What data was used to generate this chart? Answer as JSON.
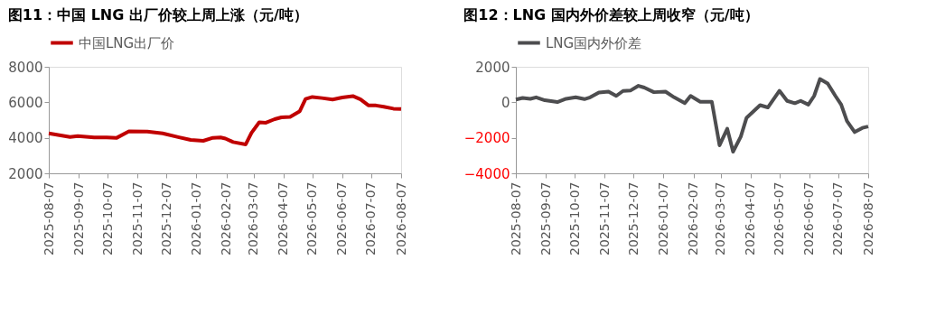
{
  "chart_data": [
    {
      "type": "line",
      "title": "图11：中国 LNG 出厂价较上周上涨（元/吨）",
      "x": [
        "2025-08-07",
        "2025-08-29",
        "2025-09-06",
        "2025-09-23",
        "2025-10-06",
        "2025-10-16",
        "2025-10-29",
        "2025-11-17",
        "2025-12-03",
        "2025-12-19",
        "2026-01-01",
        "2026-01-14",
        "2026-01-24",
        "2026-02-01",
        "2026-02-06",
        "2026-02-14",
        "2026-02-27",
        "2026-03-05",
        "2026-03-13",
        "2026-03-20",
        "2026-03-29",
        "2026-04-05",
        "2026-04-14",
        "2026-04-24",
        "2026-04-30",
        "2026-05-07",
        "2026-05-17",
        "2026-05-28",
        "2026-06-07",
        "2026-06-18",
        "2026-06-26",
        "2026-07-04",
        "2026-07-12",
        "2026-07-20",
        "2026-07-30",
        "2026-08-07"
      ],
      "series": [
        {
          "name": "中国LNG出厂价",
          "color": "#c00000",
          "values": [
            4250,
            4050,
            4100,
            4020,
            4020,
            3990,
            4360,
            4350,
            4250,
            4040,
            3880,
            3830,
            4000,
            4020,
            3960,
            3760,
            3630,
            4280,
            4870,
            4850,
            5050,
            5150,
            5180,
            5500,
            6190,
            6300,
            6240,
            6160,
            6270,
            6350,
            6160,
            5830,
            5820,
            5750,
            5640,
            5620
          ]
        }
      ],
      "xlim": [
        "2025-08-07",
        "2026-08-07"
      ],
      "xticks": [
        "2025-08-07",
        "2025-09-07",
        "2025-10-07",
        "2025-11-07",
        "2025-12-07",
        "2026-01-07",
        "2026-02-07",
        "2026-03-07",
        "2026-04-07",
        "2026-05-07",
        "2026-06-07",
        "2026-07-07",
        "2026-08-07"
      ],
      "ylim": [
        2000,
        8000
      ],
      "yticks": [
        2000,
        4000,
        6000,
        8000
      ],
      "grid": false,
      "legend": "top",
      "marker": "none",
      "line_style": "solid"
    },
    {
      "type": "line",
      "title": "图12：LNG 国内外价差较上周收窄（元/吨）",
      "x": [
        "2025-08-07",
        "2025-08-14",
        "2025-08-22",
        "2025-08-28",
        "2025-09-06",
        "2025-09-19",
        "2025-09-28",
        "2025-10-08",
        "2025-10-17",
        "2025-10-23",
        "2025-11-01",
        "2025-11-11",
        "2025-11-19",
        "2025-11-26",
        "2025-12-04",
        "2025-12-12",
        "2025-12-18",
        "2025-12-28",
        "2026-01-09",
        "2026-01-18",
        "2026-01-29",
        "2026-02-04",
        "2026-02-14",
        "2026-02-26",
        "2026-03-06",
        "2026-03-14",
        "2026-03-20",
        "2026-03-28",
        "2026-04-03",
        "2026-04-17",
        "2026-04-25",
        "2026-05-07",
        "2026-05-15",
        "2026-05-23",
        "2026-05-29",
        "2026-06-06",
        "2026-06-12",
        "2026-06-18",
        "2026-06-26",
        "2026-07-04",
        "2026-07-10",
        "2026-07-16",
        "2026-07-24",
        "2026-08-01",
        "2026-08-07"
      ],
      "series": [
        {
          "name": "LNG国内外价差",
          "color": "#4d4d4f",
          "values": [
            160,
            245,
            195,
            280,
            115,
            15,
            195,
            280,
            180,
            280,
            555,
            600,
            360,
            640,
            670,
            930,
            830,
            570,
            600,
            280,
            -50,
            360,
            30,
            30,
            -2420,
            -1490,
            -2780,
            -1930,
            -870,
            -160,
            -290,
            650,
            80,
            -50,
            80,
            -130,
            360,
            1310,
            1060,
            360,
            -130,
            -1060,
            -1680,
            -1440,
            -1360
          ]
        }
      ],
      "xlim": [
        "2025-08-07",
        "2026-08-07"
      ],
      "xticks": [
        "2025-08-07",
        "2025-09-07",
        "2025-10-07",
        "2025-11-07",
        "2025-12-07",
        "2026-01-07",
        "2026-02-07",
        "2026-03-07",
        "2026-04-07",
        "2026-05-07",
        "2026-06-07",
        "2026-07-07",
        "2026-08-07"
      ],
      "ylim": [
        -4000,
        2000
      ],
      "yticks": [
        -4000,
        -2000,
        0,
        2000
      ],
      "grid": false,
      "legend": "top",
      "marker": "none",
      "line_style": "solid"
    }
  ]
}
